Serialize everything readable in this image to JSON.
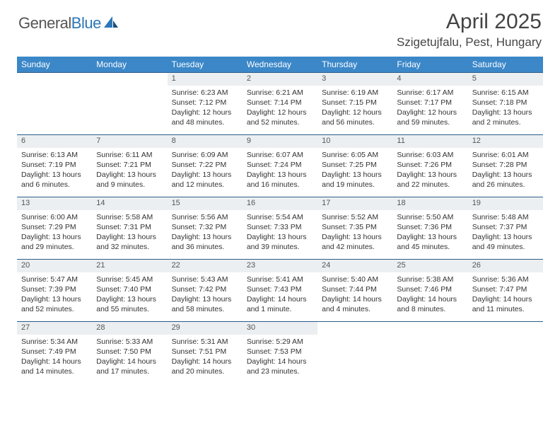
{
  "brand": {
    "part1": "General",
    "part2": "Blue"
  },
  "title": "April 2025",
  "location": "Szigetujfalu, Pest, Hungary",
  "colors": {
    "header_bg": "#3b87c8",
    "header_text": "#ffffff",
    "daynum_bg": "#eceff1",
    "rule": "#2c5d8a",
    "logo_gray": "#555555",
    "logo_blue": "#2c77b8"
  },
  "weekdays": [
    "Sunday",
    "Monday",
    "Tuesday",
    "Wednesday",
    "Thursday",
    "Friday",
    "Saturday"
  ],
  "weeks": [
    {
      "nums": [
        "",
        "",
        "1",
        "2",
        "3",
        "4",
        "5"
      ],
      "cells": [
        null,
        null,
        {
          "sr": "Sunrise: 6:23 AM",
          "ss": "Sunset: 7:12 PM",
          "dl": "Daylight: 12 hours and 48 minutes."
        },
        {
          "sr": "Sunrise: 6:21 AM",
          "ss": "Sunset: 7:14 PM",
          "dl": "Daylight: 12 hours and 52 minutes."
        },
        {
          "sr": "Sunrise: 6:19 AM",
          "ss": "Sunset: 7:15 PM",
          "dl": "Daylight: 12 hours and 56 minutes."
        },
        {
          "sr": "Sunrise: 6:17 AM",
          "ss": "Sunset: 7:17 PM",
          "dl": "Daylight: 12 hours and 59 minutes."
        },
        {
          "sr": "Sunrise: 6:15 AM",
          "ss": "Sunset: 7:18 PM",
          "dl": "Daylight: 13 hours and 2 minutes."
        }
      ]
    },
    {
      "nums": [
        "6",
        "7",
        "8",
        "9",
        "10",
        "11",
        "12"
      ],
      "cells": [
        {
          "sr": "Sunrise: 6:13 AM",
          "ss": "Sunset: 7:19 PM",
          "dl": "Daylight: 13 hours and 6 minutes."
        },
        {
          "sr": "Sunrise: 6:11 AM",
          "ss": "Sunset: 7:21 PM",
          "dl": "Daylight: 13 hours and 9 minutes."
        },
        {
          "sr": "Sunrise: 6:09 AM",
          "ss": "Sunset: 7:22 PM",
          "dl": "Daylight: 13 hours and 12 minutes."
        },
        {
          "sr": "Sunrise: 6:07 AM",
          "ss": "Sunset: 7:24 PM",
          "dl": "Daylight: 13 hours and 16 minutes."
        },
        {
          "sr": "Sunrise: 6:05 AM",
          "ss": "Sunset: 7:25 PM",
          "dl": "Daylight: 13 hours and 19 minutes."
        },
        {
          "sr": "Sunrise: 6:03 AM",
          "ss": "Sunset: 7:26 PM",
          "dl": "Daylight: 13 hours and 22 minutes."
        },
        {
          "sr": "Sunrise: 6:01 AM",
          "ss": "Sunset: 7:28 PM",
          "dl": "Daylight: 13 hours and 26 minutes."
        }
      ]
    },
    {
      "nums": [
        "13",
        "14",
        "15",
        "16",
        "17",
        "18",
        "19"
      ],
      "cells": [
        {
          "sr": "Sunrise: 6:00 AM",
          "ss": "Sunset: 7:29 PM",
          "dl": "Daylight: 13 hours and 29 minutes."
        },
        {
          "sr": "Sunrise: 5:58 AM",
          "ss": "Sunset: 7:31 PM",
          "dl": "Daylight: 13 hours and 32 minutes."
        },
        {
          "sr": "Sunrise: 5:56 AM",
          "ss": "Sunset: 7:32 PM",
          "dl": "Daylight: 13 hours and 36 minutes."
        },
        {
          "sr": "Sunrise: 5:54 AM",
          "ss": "Sunset: 7:33 PM",
          "dl": "Daylight: 13 hours and 39 minutes."
        },
        {
          "sr": "Sunrise: 5:52 AM",
          "ss": "Sunset: 7:35 PM",
          "dl": "Daylight: 13 hours and 42 minutes."
        },
        {
          "sr": "Sunrise: 5:50 AM",
          "ss": "Sunset: 7:36 PM",
          "dl": "Daylight: 13 hours and 45 minutes."
        },
        {
          "sr": "Sunrise: 5:48 AM",
          "ss": "Sunset: 7:37 PM",
          "dl": "Daylight: 13 hours and 49 minutes."
        }
      ]
    },
    {
      "nums": [
        "20",
        "21",
        "22",
        "23",
        "24",
        "25",
        "26"
      ],
      "cells": [
        {
          "sr": "Sunrise: 5:47 AM",
          "ss": "Sunset: 7:39 PM",
          "dl": "Daylight: 13 hours and 52 minutes."
        },
        {
          "sr": "Sunrise: 5:45 AM",
          "ss": "Sunset: 7:40 PM",
          "dl": "Daylight: 13 hours and 55 minutes."
        },
        {
          "sr": "Sunrise: 5:43 AM",
          "ss": "Sunset: 7:42 PM",
          "dl": "Daylight: 13 hours and 58 minutes."
        },
        {
          "sr": "Sunrise: 5:41 AM",
          "ss": "Sunset: 7:43 PM",
          "dl": "Daylight: 14 hours and 1 minute."
        },
        {
          "sr": "Sunrise: 5:40 AM",
          "ss": "Sunset: 7:44 PM",
          "dl": "Daylight: 14 hours and 4 minutes."
        },
        {
          "sr": "Sunrise: 5:38 AM",
          "ss": "Sunset: 7:46 PM",
          "dl": "Daylight: 14 hours and 8 minutes."
        },
        {
          "sr": "Sunrise: 5:36 AM",
          "ss": "Sunset: 7:47 PM",
          "dl": "Daylight: 14 hours and 11 minutes."
        }
      ]
    },
    {
      "nums": [
        "27",
        "28",
        "29",
        "30",
        "",
        "",
        ""
      ],
      "cells": [
        {
          "sr": "Sunrise: 5:34 AM",
          "ss": "Sunset: 7:49 PM",
          "dl": "Daylight: 14 hours and 14 minutes."
        },
        {
          "sr": "Sunrise: 5:33 AM",
          "ss": "Sunset: 7:50 PM",
          "dl": "Daylight: 14 hours and 17 minutes."
        },
        {
          "sr": "Sunrise: 5:31 AM",
          "ss": "Sunset: 7:51 PM",
          "dl": "Daylight: 14 hours and 20 minutes."
        },
        {
          "sr": "Sunrise: 5:29 AM",
          "ss": "Sunset: 7:53 PM",
          "dl": "Daylight: 14 hours and 23 minutes."
        },
        null,
        null,
        null
      ]
    }
  ]
}
